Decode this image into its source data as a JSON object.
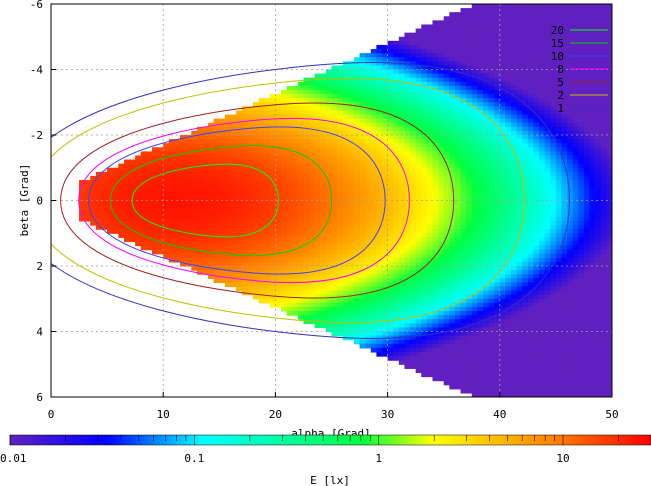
{
  "chart_data": {
    "type": "heatmap",
    "xlabel": "alpha [Grad]",
    "ylabel": "beta [Grad]",
    "xlim": [
      0,
      50
    ],
    "ylim": [
      -6,
      6
    ],
    "y_axis_inverted": true,
    "x_ticks": [
      "0",
      "10",
      "20",
      "30",
      "40",
      "50"
    ],
    "y_ticks": [
      "-6",
      "-4",
      "-2",
      "0",
      "2",
      "4",
      "6"
    ],
    "grid": true,
    "contour_levels": [
      {
        "level": "20",
        "color": "#00ff00"
      },
      {
        "level": "15",
        "color": "#00d000"
      },
      {
        "level": "10",
        "color": "#4040ff"
      },
      {
        "level": "8",
        "color": "#ff00ff"
      },
      {
        "level": "5",
        "color": "#a02020"
      },
      {
        "level": "2",
        "color": "#c0c000"
      },
      {
        "level": "1",
        "color": "#3030c0"
      }
    ],
    "legend_placement": "top-right",
    "colorbar": {
      "label": "E [lx]",
      "scale": "log",
      "range": [
        0.01,
        30
      ],
      "tick_labels": [
        "0.01",
        "0.1",
        "1",
        "10"
      ],
      "tick_values": [
        0.01,
        0.1,
        1,
        10
      ],
      "colors": [
        "#6020c0",
        "#0000ff",
        "#00ffff",
        "#00ff40",
        "#ffff00",
        "#ff8000",
        "#ff0000"
      ]
    },
    "peak": {
      "alpha": 11,
      "beta": 0,
      "value": 25
    }
  }
}
